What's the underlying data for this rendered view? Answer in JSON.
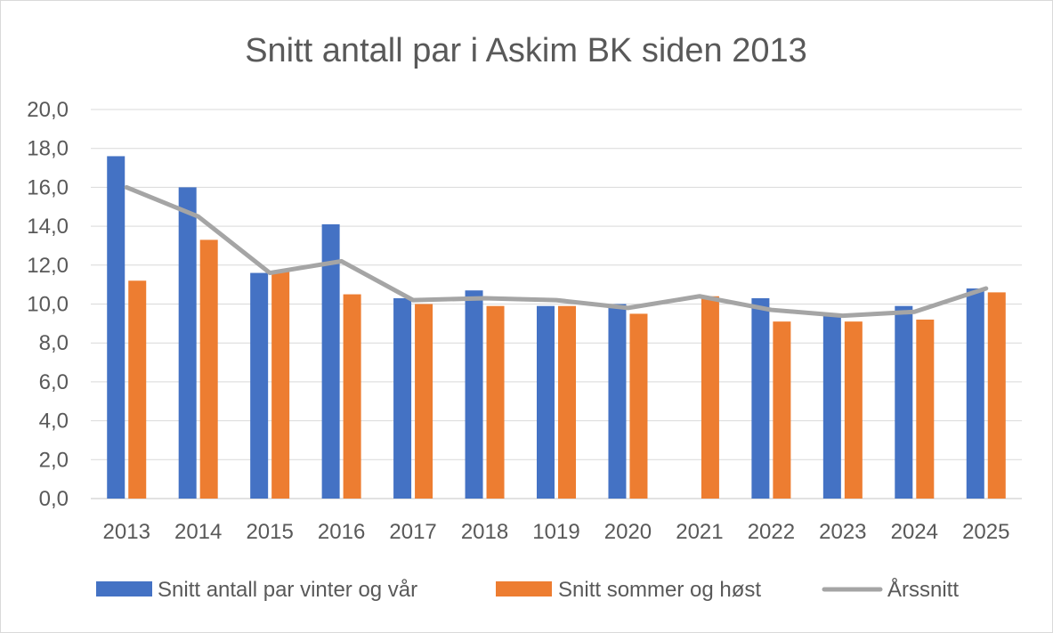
{
  "chart_data": {
    "type": "bar",
    "title": "Snitt antall par i Askim BK siden 2013",
    "categories": [
      "2013",
      "2014",
      "2015",
      "2016",
      "2017",
      "2018",
      "1019",
      "2020",
      "2021",
      "2022",
      "2023",
      "2024",
      "2025"
    ],
    "series": [
      {
        "name": "Snitt antall par vinter og vår",
        "type": "bar",
        "color": "#4472c4",
        "values": [
          17.6,
          16.0,
          11.6,
          14.1,
          10.3,
          10.7,
          9.9,
          10.0,
          null,
          10.3,
          9.5,
          9.9,
          10.8
        ]
      },
      {
        "name": "Snitt sommer og høst",
        "type": "bar",
        "color": "#ed7d31",
        "values": [
          11.2,
          13.3,
          11.7,
          10.5,
          10.0,
          9.9,
          9.9,
          9.5,
          10.4,
          9.1,
          9.1,
          9.2,
          10.6
        ]
      },
      {
        "name": "Årssnitt",
        "type": "line",
        "color": "#a5a5a5",
        "values": [
          16.0,
          14.5,
          11.6,
          12.2,
          10.2,
          10.3,
          10.2,
          9.8,
          10.4,
          9.7,
          9.4,
          9.6,
          10.8
        ]
      }
    ],
    "ylim": [
      0,
      20
    ],
    "yticks": [
      "0,0",
      "2,0",
      "4,0",
      "6,0",
      "8,0",
      "10,0",
      "12,0",
      "14,0",
      "16,0",
      "18,0",
      "20,0"
    ],
    "grid": true,
    "legend": "bottom"
  }
}
